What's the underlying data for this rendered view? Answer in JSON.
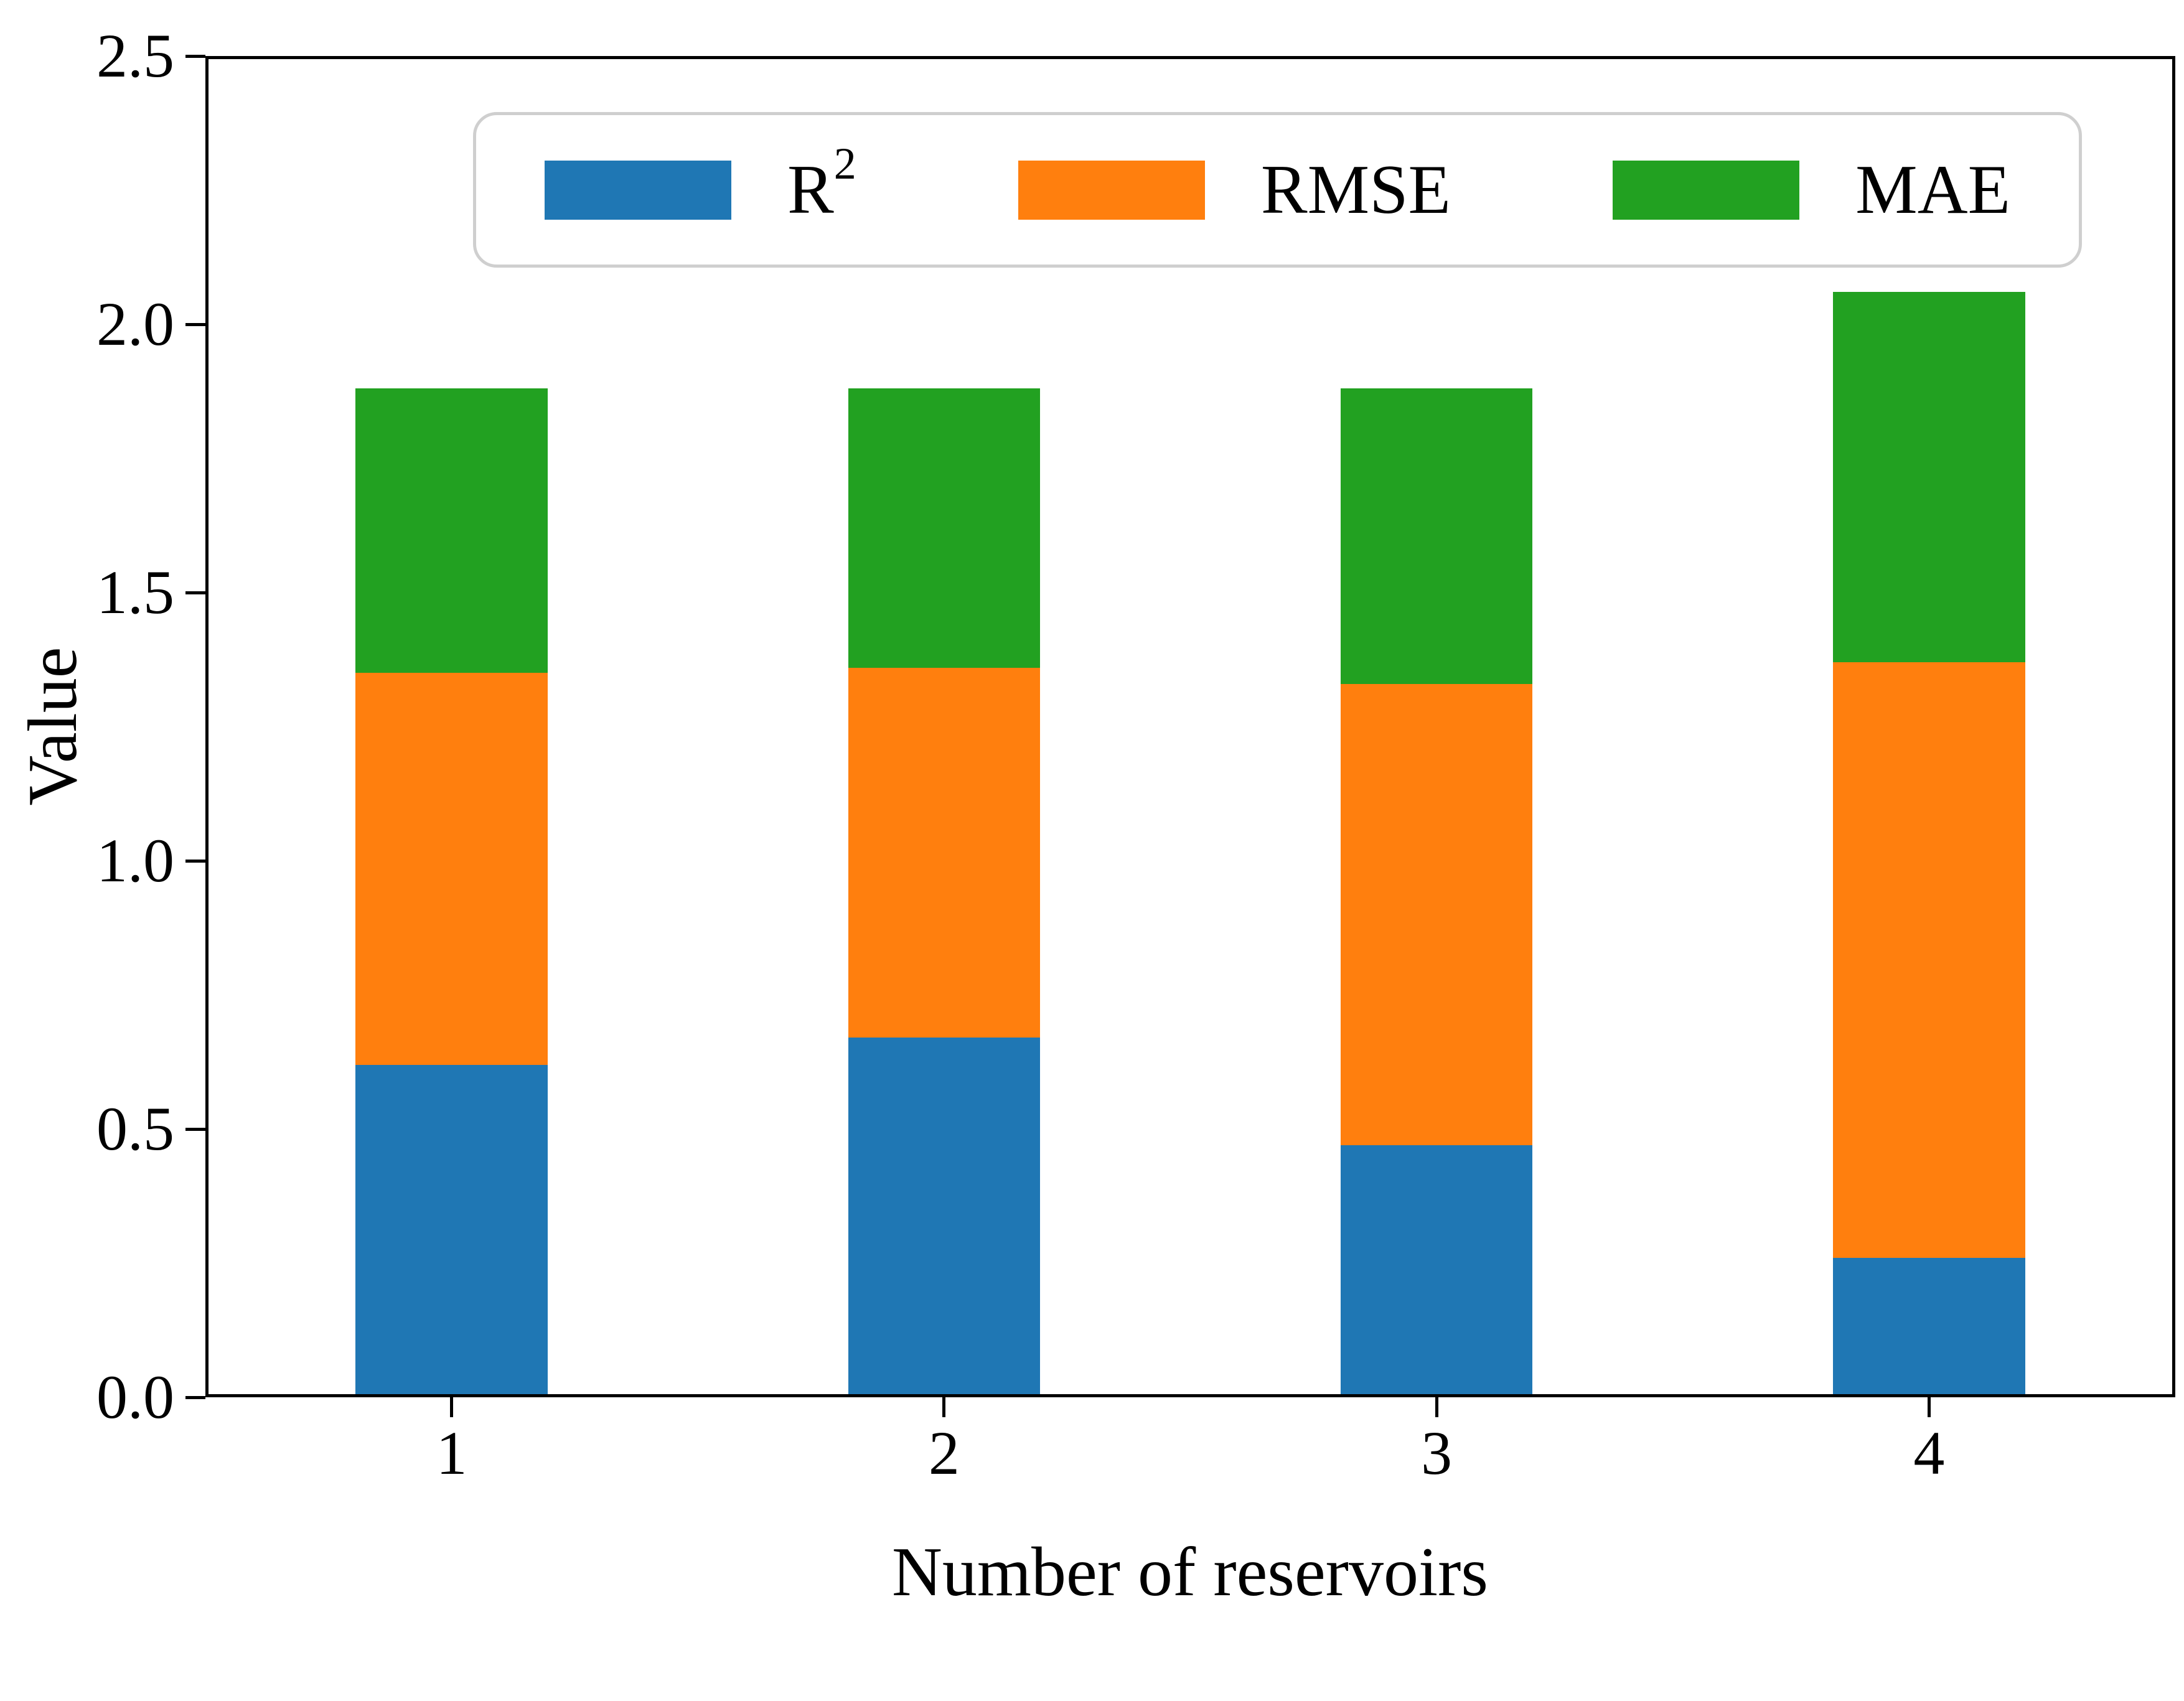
{
  "figure": {
    "background": "#ffffff"
  },
  "chart_data": {
    "type": "bar",
    "stacked": true,
    "title": "",
    "xlabel": "Number of reservoirs",
    "ylabel": "Value",
    "categories": [
      "1",
      "2",
      "3",
      "4"
    ],
    "series": [
      {
        "name": "R^2",
        "color": "#1f77b4",
        "values": [
          0.62,
          0.67,
          0.47,
          0.26
        ]
      },
      {
        "name": "RMSE",
        "color": "#ff7f0e",
        "values": [
          0.73,
          0.69,
          0.86,
          1.11
        ]
      },
      {
        "name": "MAE",
        "color": "#22a121",
        "values": [
          0.53,
          0.52,
          0.55,
          0.69
        ]
      }
    ],
    "ylim": [
      0,
      2.5
    ],
    "yticks": [
      "0.0",
      "0.5",
      "1.0",
      "1.5",
      "2.0",
      "2.5"
    ],
    "grid": false,
    "legend_position": "upper center",
    "legend_labels": [
      "R^2",
      "RMSE",
      "MAE"
    ]
  }
}
